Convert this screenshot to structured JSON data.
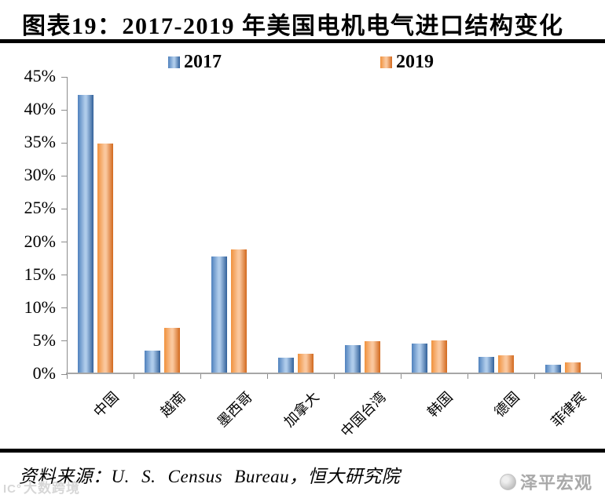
{
  "title": "图表19：2017-2019 年美国电机电气进口结构变化",
  "chart_data": {
    "type": "bar",
    "title": "2017-2019 年美国电机电气进口结构变化",
    "categories": [
      "中国",
      "越南",
      "墨西哥",
      "加拿大",
      "中国台湾",
      "韩国",
      "德国",
      "菲律宾"
    ],
    "series": [
      {
        "name": "2017",
        "values": [
          42.0,
          3.3,
          17.6,
          2.2,
          4.2,
          4.4,
          2.4,
          1.2
        ],
        "color": "#4F81BD",
        "color_light": "#AECBEA",
        "color_dark": "#31609A"
      },
      {
        "name": "2019",
        "values": [
          34.7,
          6.8,
          18.7,
          2.8,
          4.7,
          4.9,
          2.6,
          1.5
        ],
        "color": "#F0913C",
        "color_light": "#FAC79D",
        "color_dark": "#D2691E"
      }
    ],
    "xlabel": "",
    "ylabel": "",
    "ylim": [
      0,
      45
    ],
    "ytick_step": 5,
    "ytick_suffix": "%",
    "grid": false,
    "legend_position": "top-center",
    "x_label_rotation": -45
  },
  "footer": {
    "source": "资料来源：U. S. Census Bureau，恒大研究院",
    "brand": "泽平宏观"
  },
  "watermark": {
    "icon": "IC°",
    "text": "大数跨境"
  },
  "colors": {
    "axis": "#8C8C8C",
    "divider": "#000000"
  }
}
